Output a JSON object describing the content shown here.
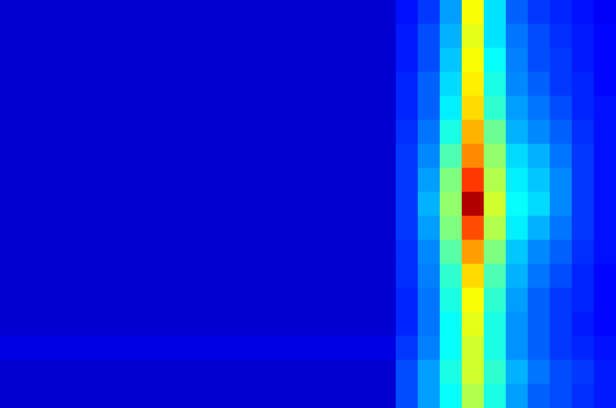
{
  "chart_data": {
    "type": "heatmap",
    "tick_labels": false,
    "color_range": [
      0,
      1
    ],
    "cells": [
      [
        0.08,
        0.08,
        0.08,
        0.08,
        0.08,
        0.08,
        0.08,
        0.08,
        0.08,
        0.08,
        0.08,
        0.08,
        0.08,
        0.08,
        0.08,
        0.08,
        0.08,
        0.08,
        0.14,
        0.18,
        0.28,
        0.62,
        0.35,
        0.22,
        0.18,
        0.16,
        0.14,
        0.12
      ],
      [
        0.08,
        0.08,
        0.08,
        0.08,
        0.08,
        0.08,
        0.08,
        0.08,
        0.08,
        0.08,
        0.08,
        0.08,
        0.08,
        0.08,
        0.08,
        0.08,
        0.08,
        0.08,
        0.15,
        0.2,
        0.3,
        0.6,
        0.35,
        0.24,
        0.2,
        0.17,
        0.15,
        0.13
      ],
      [
        0.08,
        0.08,
        0.08,
        0.08,
        0.08,
        0.08,
        0.08,
        0.08,
        0.08,
        0.08,
        0.08,
        0.08,
        0.08,
        0.08,
        0.08,
        0.08,
        0.08,
        0.08,
        0.15,
        0.2,
        0.32,
        0.62,
        0.38,
        0.25,
        0.2,
        0.18,
        0.15,
        0.13
      ],
      [
        0.08,
        0.08,
        0.08,
        0.08,
        0.08,
        0.08,
        0.08,
        0.08,
        0.08,
        0.08,
        0.08,
        0.08,
        0.08,
        0.08,
        0.08,
        0.08,
        0.08,
        0.08,
        0.16,
        0.22,
        0.34,
        0.64,
        0.4,
        0.26,
        0.22,
        0.18,
        0.16,
        0.13
      ],
      [
        0.08,
        0.08,
        0.08,
        0.08,
        0.08,
        0.08,
        0.08,
        0.08,
        0.08,
        0.08,
        0.08,
        0.08,
        0.08,
        0.08,
        0.08,
        0.08,
        0.08,
        0.08,
        0.16,
        0.22,
        0.36,
        0.66,
        0.42,
        0.28,
        0.24,
        0.2,
        0.16,
        0.14
      ],
      [
        0.08,
        0.08,
        0.08,
        0.08,
        0.08,
        0.08,
        0.08,
        0.08,
        0.08,
        0.08,
        0.08,
        0.08,
        0.08,
        0.08,
        0.08,
        0.08,
        0.08,
        0.08,
        0.17,
        0.24,
        0.4,
        0.7,
        0.48,
        0.3,
        0.26,
        0.22,
        0.17,
        0.14
      ],
      [
        0.08,
        0.08,
        0.08,
        0.08,
        0.08,
        0.08,
        0.08,
        0.08,
        0.08,
        0.08,
        0.08,
        0.08,
        0.08,
        0.08,
        0.08,
        0.08,
        0.08,
        0.08,
        0.18,
        0.26,
        0.45,
        0.74,
        0.52,
        0.34,
        0.3,
        0.24,
        0.18,
        0.14
      ],
      [
        0.08,
        0.08,
        0.08,
        0.08,
        0.08,
        0.08,
        0.08,
        0.08,
        0.08,
        0.08,
        0.08,
        0.08,
        0.08,
        0.08,
        0.08,
        0.08,
        0.08,
        0.08,
        0.18,
        0.28,
        0.5,
        0.82,
        0.55,
        0.36,
        0.32,
        0.26,
        0.18,
        0.14
      ],
      [
        0.08,
        0.08,
        0.08,
        0.08,
        0.08,
        0.08,
        0.08,
        0.08,
        0.08,
        0.08,
        0.08,
        0.08,
        0.08,
        0.08,
        0.08,
        0.08,
        0.08,
        0.08,
        0.18,
        0.3,
        0.52,
        0.95,
        0.58,
        0.38,
        0.34,
        0.26,
        0.18,
        0.14
      ],
      [
        0.08,
        0.08,
        0.08,
        0.08,
        0.08,
        0.08,
        0.08,
        0.08,
        0.08,
        0.08,
        0.08,
        0.08,
        0.08,
        0.08,
        0.08,
        0.08,
        0.08,
        0.08,
        0.18,
        0.28,
        0.5,
        0.8,
        0.55,
        0.36,
        0.3,
        0.24,
        0.18,
        0.14
      ],
      [
        0.08,
        0.08,
        0.08,
        0.08,
        0.08,
        0.08,
        0.08,
        0.08,
        0.08,
        0.08,
        0.08,
        0.08,
        0.08,
        0.08,
        0.08,
        0.08,
        0.08,
        0.08,
        0.17,
        0.26,
        0.46,
        0.72,
        0.5,
        0.32,
        0.26,
        0.22,
        0.17,
        0.14
      ],
      [
        0.08,
        0.08,
        0.08,
        0.08,
        0.08,
        0.08,
        0.08,
        0.08,
        0.08,
        0.08,
        0.08,
        0.08,
        0.08,
        0.08,
        0.08,
        0.08,
        0.08,
        0.08,
        0.17,
        0.25,
        0.42,
        0.66,
        0.45,
        0.3,
        0.24,
        0.2,
        0.16,
        0.13
      ],
      [
        0.08,
        0.08,
        0.08,
        0.08,
        0.08,
        0.08,
        0.08,
        0.08,
        0.08,
        0.08,
        0.08,
        0.08,
        0.08,
        0.08,
        0.08,
        0.08,
        0.08,
        0.08,
        0.16,
        0.24,
        0.4,
        0.62,
        0.42,
        0.28,
        0.22,
        0.18,
        0.16,
        0.13
      ],
      [
        0.08,
        0.08,
        0.08,
        0.08,
        0.08,
        0.08,
        0.08,
        0.08,
        0.08,
        0.08,
        0.08,
        0.08,
        0.08,
        0.08,
        0.08,
        0.08,
        0.08,
        0.08,
        0.16,
        0.24,
        0.38,
        0.6,
        0.4,
        0.27,
        0.22,
        0.18,
        0.15,
        0.13
      ],
      [
        0.1,
        0.1,
        0.1,
        0.1,
        0.1,
        0.1,
        0.1,
        0.1,
        0.1,
        0.1,
        0.1,
        0.1,
        0.1,
        0.1,
        0.1,
        0.1,
        0.1,
        0.1,
        0.18,
        0.25,
        0.38,
        0.58,
        0.4,
        0.27,
        0.22,
        0.18,
        0.16,
        0.14
      ],
      [
        0.08,
        0.08,
        0.08,
        0.08,
        0.08,
        0.08,
        0.08,
        0.08,
        0.08,
        0.08,
        0.08,
        0.08,
        0.08,
        0.08,
        0.08,
        0.08,
        0.08,
        0.08,
        0.2,
        0.28,
        0.4,
        0.58,
        0.42,
        0.3,
        0.24,
        0.2,
        0.18,
        0.15
      ],
      [
        0.08,
        0.08,
        0.08,
        0.08,
        0.08,
        0.08,
        0.08,
        0.08,
        0.08,
        0.08,
        0.08,
        0.08,
        0.08,
        0.08,
        0.08,
        0.08,
        0.08,
        0.08,
        0.2,
        0.28,
        0.38,
        0.55,
        0.4,
        0.28,
        0.22,
        0.2,
        0.17,
        0.15
      ]
    ]
  }
}
